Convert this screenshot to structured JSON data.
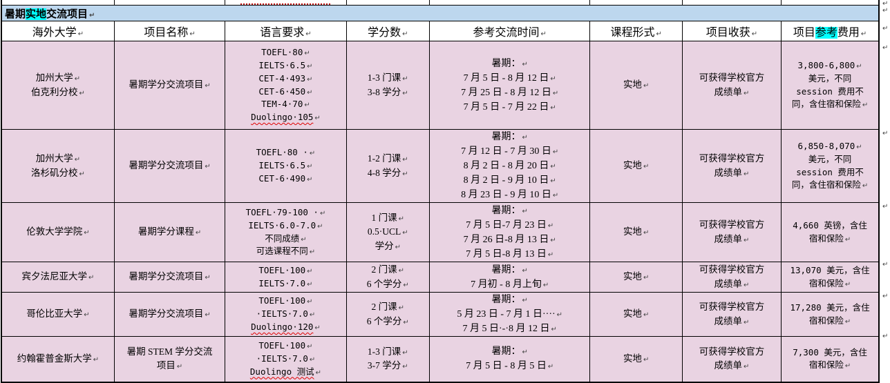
{
  "title": {
    "segments": [
      {
        "text": "暑期"
      },
      {
        "text": "实地",
        "highlight": true
      },
      {
        "text": "交流项目"
      }
    ]
  },
  "marks": {
    "line_end": "↵",
    "row_end": "↵"
  },
  "colors": {
    "title_bg": "#BDD7EE",
    "row_bg": "#E9D3E2",
    "highlight": "#00FFFF",
    "spellcheck_wavy": "#E00000",
    "dotted_underline": "#C00000",
    "border": "#000000"
  },
  "columns": [
    {
      "segments": [
        {
          "text": "海外大学"
        }
      ]
    },
    {
      "segments": [
        {
          "text": "项目名称"
        }
      ]
    },
    {
      "segments": [
        {
          "text": "语言要求"
        }
      ]
    },
    {
      "segments": [
        {
          "text": "学分数"
        }
      ]
    },
    {
      "segments": [
        {
          "text": "参考交流时间"
        }
      ]
    },
    {
      "segments": [
        {
          "text": "课程形式"
        }
      ]
    },
    {
      "segments": [
        {
          "text": "项目收获"
        }
      ]
    },
    {
      "segments": [
        {
          "text": "项目"
        },
        {
          "text": "参考",
          "highlight": true
        },
        {
          "text": "费用"
        }
      ]
    }
  ],
  "rows": [
    {
      "cells": [
        {
          "lines": [
            {
              "t": "加州大学",
              "m": true
            },
            {
              "t": "伯克利分校",
              "m": true
            }
          ]
        },
        {
          "lines": [
            {
              "t": "暑期学分交流项目",
              "m": true
            }
          ]
        },
        {
          "lines": [
            {
              "t": "TOEFL·80",
              "m": true
            },
            {
              "t": "IELTS·6.5",
              "m": true
            },
            {
              "t": "CET-4·493",
              "m": true
            },
            {
              "t": "CET-6·450",
              "m": true
            },
            {
              "t": "TEM-4·70",
              "m": true
            },
            {
              "t": "Duolingo·105",
              "m": true,
              "w": true
            }
          ]
        },
        {
          "lines": [
            {
              "t": "1-3 门课",
              "m": true
            },
            {
              "t": "3-8 学分",
              "m": true
            }
          ]
        },
        {
          "lines": [
            {
              "t": "暑期：",
              "m": true
            },
            {
              "t": "7 月 5 日 - 8 月 12 日",
              "m": true
            },
            {
              "t": "7 月 25 日 - 8 月 12 日",
              "m": true
            },
            {
              "t": "7 月 5 日 - 7 月 22 日",
              "m": true
            }
          ]
        },
        {
          "lines": [
            {
              "t": "实地",
              "m": true
            }
          ]
        },
        {
          "lines": [
            {
              "t": "可获得学校官方"
            },
            {
              "t": "成绩单",
              "m": true
            }
          ]
        },
        {
          "lines": [
            {
              "t": "3,800-6,800",
              "m": true
            },
            {
              "t": "美元，不同"
            },
            {
              "t": "session 费用不"
            },
            {
              "t": "同，含住宿和保险",
              "m": true
            }
          ]
        }
      ]
    },
    {
      "cells": [
        {
          "lines": [
            {
              "t": "加州大学",
              "m": true
            },
            {
              "t": "洛杉矶分校",
              "m": true
            }
          ]
        },
        {
          "lines": [
            {
              "t": "暑期学分交流项目",
              "m": true
            }
          ]
        },
        {
          "lines": [
            {
              "t": "TOEFL·80 ·",
              "m": true
            },
            {
              "t": "IELTS·6.5",
              "m": true
            },
            {
              "t": "CET-6·490",
              "m": true
            }
          ]
        },
        {
          "lines": [
            {
              "t": "1-2 门课",
              "m": true
            },
            {
              "t": "4-8 学分",
              "m": true
            }
          ]
        },
        {
          "lines": [
            {
              "t": "暑期：",
              "m": true
            },
            {
              "t": "7 月 12 日 - 7 月 30 日",
              "m": true
            },
            {
              "t": "8 月 2 日 - 8 月 20 日",
              "m": true
            },
            {
              "t": "8 月 2 日 - 9 月 10 日",
              "m": true
            },
            {
              "t": "8 月 23 日 - 9 月 10 日",
              "m": true
            }
          ]
        },
        {
          "lines": [
            {
              "t": "实地",
              "m": true
            }
          ]
        },
        {
          "lines": [
            {
              "t": "可获得学校官方"
            },
            {
              "t": "成绩单",
              "m": true
            }
          ]
        },
        {
          "lines": [
            {
              "t": "6,850-8,070",
              "m": true
            },
            {
              "t": "美元，不同"
            },
            {
              "t": "session 费用不"
            },
            {
              "t": "同，含住宿和保险",
              "m": true
            }
          ]
        }
      ]
    },
    {
      "cells": [
        {
          "lines": [
            {
              "t": "伦敦大学学院",
              "m": true
            }
          ]
        },
        {
          "lines": [
            {
              "t": "暑期学分课程",
              "m": true
            }
          ]
        },
        {
          "lines": [
            {
              "t": "TOEFL·79-100 ·",
              "m": true
            },
            {
              "t": "IELTS·6.0-7.0",
              "m": true
            },
            {
              "t": "不同成绩",
              "m": true
            },
            {
              "t": "可选课程不同",
              "m": true
            }
          ]
        },
        {
          "lines": [
            {
              "t": "1 门课",
              "m": true
            },
            {
              "t": "0.5·UCL",
              "m": true
            },
            {
              "t": "学分",
              "m": true
            }
          ]
        },
        {
          "lines": [
            {
              "t": "暑期：",
              "m": true
            },
            {
              "t": "7 月 5 日-7 月 23 日",
              "m": true
            },
            {
              "t": "7 月 26 日-8 月 13 日",
              "m": true
            },
            {
              "t": "7 月 5 日-8 月 13 日",
              "m": true
            }
          ]
        },
        {
          "lines": [
            {
              "t": "实地",
              "m": true
            }
          ]
        },
        {
          "lines": [
            {
              "t": "可获得学校官方"
            },
            {
              "t": "成绩单",
              "m": true
            }
          ]
        },
        {
          "lines": [
            {
              "t": "4,660 英镑，含住"
            },
            {
              "t": "宿和保险",
              "m": true
            }
          ]
        }
      ]
    },
    {
      "cells": [
        {
          "lines": [
            {
              "t": "宾夕法尼亚大学",
              "m": true
            }
          ]
        },
        {
          "lines": [
            {
              "t": "暑期学分交流项目",
              "m": true
            }
          ]
        },
        {
          "lines": [
            {
              "t": "TOEFL·100",
              "m": true
            },
            {
              "t": "IELTS·7.0",
              "m": true
            }
          ]
        },
        {
          "lines": [
            {
              "t": "2 门课",
              "m": true
            },
            {
              "t": "6 个学分",
              "m": true
            }
          ]
        },
        {
          "lines": [
            {
              "t": "暑期：",
              "m": true
            },
            {
              "t": "7 月初 - 8 月上旬",
              "m": true
            }
          ]
        },
        {
          "lines": [
            {
              "t": "实地",
              "m": true
            }
          ]
        },
        {
          "lines": [
            {
              "t": "可获得学校官方"
            },
            {
              "t": "成绩单",
              "m": true
            }
          ]
        },
        {
          "lines": [
            {
              "t": "13,070 美元，含住"
            },
            {
              "t": "宿和保险",
              "m": true
            }
          ]
        }
      ]
    },
    {
      "cells": [
        {
          "lines": [
            {
              "t": "哥伦比亚大学",
              "m": true
            }
          ]
        },
        {
          "lines": [
            {
              "t": "暑期学分交流项目",
              "m": true
            }
          ]
        },
        {
          "lines": [
            {
              "t": "TOEFL·100",
              "m": true
            },
            {
              "t": "·IELTS·7.0",
              "m": true
            },
            {
              "t": "Duolingo·120",
              "m": true,
              "w": true
            }
          ]
        },
        {
          "lines": [
            {
              "t": "2 门课",
              "m": true
            },
            {
              "t": "6 个学分",
              "m": true
            }
          ]
        },
        {
          "lines": [
            {
              "t": "暑期：",
              "m": true
            },
            {
              "t": "5 月 23 日 - 7 月 1 日····",
              "m": true
            },
            {
              "t": "7 月 5 日·-·8 月 12 日",
              "m": true
            }
          ]
        },
        {
          "lines": [
            {
              "t": "实地",
              "m": true
            }
          ]
        },
        {
          "lines": [
            {
              "t": "可获得学校官方"
            },
            {
              "t": "成绩单",
              "m": true
            }
          ]
        },
        {
          "lines": [
            {
              "t": "17,280 美元，含住"
            },
            {
              "t": "宿和保险",
              "m": true
            }
          ]
        }
      ]
    },
    {
      "cells": [
        {
          "lines": [
            {
              "t": "约翰霍普金斯大学",
              "m": true
            }
          ]
        },
        {
          "lines": [
            {
              "t": "暑期 STEM 学分交流"
            },
            {
              "t": "项目",
              "m": true
            }
          ]
        },
        {
          "lines": [
            {
              "t": "TOEFL·100",
              "m": true
            },
            {
              "t": "·IELTS·7.0",
              "m": true
            },
            {
              "t": "Duolingo 测试",
              "m": true,
              "w": true
            }
          ]
        },
        {
          "lines": [
            {
              "t": "1-3 门课",
              "m": true
            },
            {
              "t": "3-7 学分",
              "m": true
            }
          ]
        },
        {
          "lines": [
            {
              "t": "暑期：",
              "m": true
            },
            {
              "t": "7 月 5 日 - 8 月 5 日",
              "m": true
            }
          ]
        },
        {
          "lines": [
            {
              "t": "实地",
              "m": true
            }
          ]
        },
        {
          "lines": [
            {
              "t": "可获得学校官方"
            },
            {
              "t": "成绩单",
              "m": true
            }
          ]
        },
        {
          "lines": [
            {
              "t": "7,300 美元，含住"
            },
            {
              "t": "宿和保险",
              "m": true
            }
          ]
        }
      ]
    }
  ]
}
